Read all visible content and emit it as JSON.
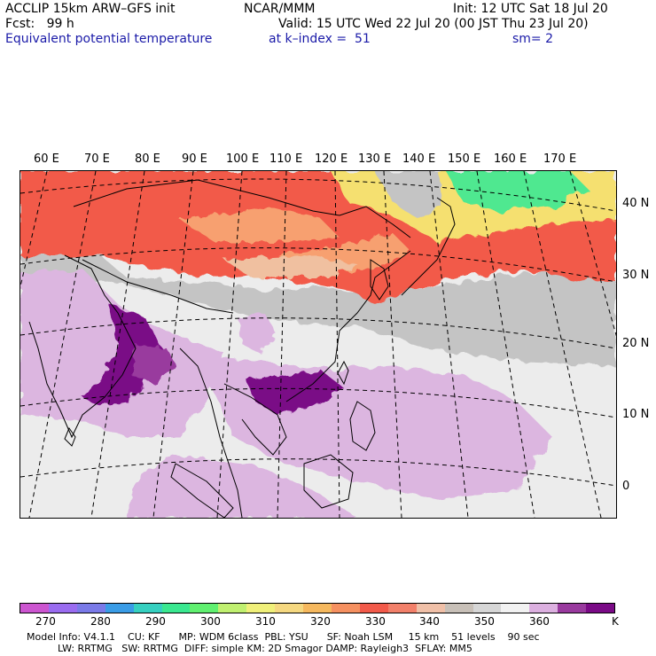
{
  "header": {
    "line1_left": "ACCLIP 15km ARW–GFS init",
    "line1_mid": "NCAR/MMM",
    "line1_right": "Init: 12 UTC Sat 18 Jul 20",
    "line2_left": "Fcst:   99 h",
    "line2_right": "Valid: 15 UTC Wed 22 Jul 20 (00 JST Thu 23 Jul 20)",
    "line3_left": "Equivalent potential temperature",
    "line3_mid": "at k–index =  51",
    "line3_right": "sm= 2"
  },
  "map": {
    "lon_labels": [
      "60 E",
      "70 E",
      "80 E",
      "90 E",
      "100 E",
      "110 E",
      "120 E",
      "130 E",
      "140 E",
      "150 E",
      "160 E",
      "170 E"
    ],
    "lat_labels": [
      "40 N",
      "30 N",
      "20 N",
      "10 N",
      "0"
    ],
    "colors": {
      "hot": "#f25a4a",
      "orange": "#f7a070",
      "peach": "#f0c0a0",
      "yellow": "#f5e070",
      "green": "#4fe890",
      "gray": "#c4c4c4",
      "lightgray": "#ececec",
      "lavender": "#dcb6e0",
      "magenta": "#993a9e",
      "purple": "#7a0a86"
    }
  },
  "colorbar": {
    "colors": [
      "#cc55d0",
      "#9a6cf0",
      "#7a7ae8",
      "#3a9ce6",
      "#36d0c0",
      "#3ae890",
      "#60f070",
      "#c0f070",
      "#f0f07a",
      "#f5d880",
      "#f5b85e",
      "#f59060",
      "#f25a4a",
      "#f2806a",
      "#f0c0a8",
      "#c8c0b8",
      "#d6d6d6",
      "#f2f2f2",
      "#dcb0e0",
      "#993a9e",
      "#7a0a86"
    ],
    "labels": [
      "270",
      "280",
      "290",
      "300",
      "310",
      "320",
      "330",
      "340",
      "350",
      "360",
      "K"
    ]
  },
  "footer": {
    "line1": "Model Info: V4.1.1    CU: KF      MP: WDM 6class  PBL: YSU      SF: Noah LSM     15 km    51 levels    90 sec",
    "line2": "          LW: RRTMG   SW: RRTMG  DIFF: simple KM: 2D Smagor DAMP: Rayleigh3  SFLAY: MM5"
  }
}
